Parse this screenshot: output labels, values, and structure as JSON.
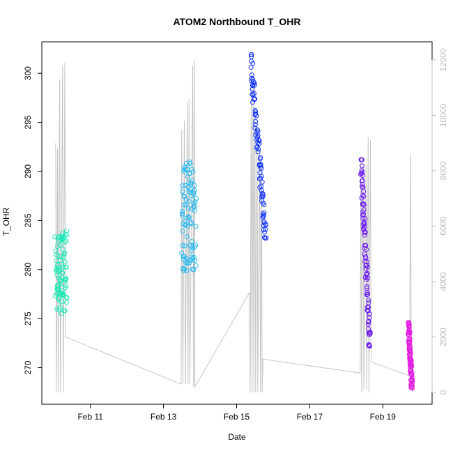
{
  "chart_data": {
    "type": "scatter",
    "title": "ATOM2 Northbound T_OHR",
    "xlabel": "Date",
    "ylabel": "T_OHR",
    "x_ticks": [
      {
        "day": 11,
        "label": "Feb 11"
      },
      {
        "day": 13,
        "label": "Feb 13"
      },
      {
        "day": 15,
        "label": "Feb 15"
      },
      {
        "day": 17,
        "label": "Feb 17"
      },
      {
        "day": 19,
        "label": "Feb 19"
      }
    ],
    "xlim": [
      9.9,
      20.1
    ],
    "ylim": [
      267.2,
      302.5
    ],
    "y_ticks": [
      270,
      275,
      280,
      285,
      290,
      295,
      300
    ],
    "y2lim": [
      -100,
      12400
    ],
    "y2_ticks": [
      0,
      2000,
      4000,
      6000,
      8000,
      10000,
      12000
    ],
    "y2_color": "#bdbdbd",
    "grid": false,
    "legend": "none",
    "scatter_series": [
      {
        "color": "#1de9b6",
        "x_range": [
          10.05,
          10.35
        ],
        "y_range": [
          275.5,
          284.0
        ]
      },
      {
        "color": "#1fb8f0",
        "x_range": [
          13.5,
          13.88
        ],
        "y_range": [
          279.8,
          291.1
        ]
      },
      {
        "color": "#1535f5",
        "x_range": [
          15.38,
          15.8
        ],
        "y_range": [
          283.2,
          301.9
        ]
      },
      {
        "color": "#6a17f2",
        "x_range": [
          18.4,
          18.65
        ],
        "y_range": [
          272.2,
          291.2
        ]
      },
      {
        "color": "#e21de0",
        "x_range": [
          19.7,
          19.8
        ],
        "y_range": [
          267.9,
          274.6
        ]
      }
    ],
    "line_series": {
      "color": "#c4c4c4",
      "axis": "right",
      "points": [
        [
          10.05,
          9000
        ],
        [
          10.07,
          0
        ],
        [
          10.1,
          8800
        ],
        [
          10.12,
          0
        ],
        [
          10.16,
          11300
        ],
        [
          10.18,
          0
        ],
        [
          10.24,
          11800
        ],
        [
          10.26,
          0
        ],
        [
          10.3,
          11900
        ],
        [
          10.32,
          2000
        ],
        [
          13.48,
          300
        ],
        [
          13.5,
          9500
        ],
        [
          13.53,
          300
        ],
        [
          13.57,
          9800
        ],
        [
          13.6,
          300
        ],
        [
          13.65,
          10500
        ],
        [
          13.67,
          300
        ],
        [
          13.7,
          10600
        ],
        [
          13.72,
          300
        ],
        [
          13.8,
          11800
        ],
        [
          13.82,
          200
        ],
        [
          13.84,
          12000
        ],
        [
          13.86,
          200
        ],
        [
          15.35,
          3600
        ],
        [
          15.37,
          0
        ],
        [
          15.4,
          11600
        ],
        [
          15.42,
          0
        ],
        [
          15.45,
          11000
        ],
        [
          15.47,
          0
        ],
        [
          15.5,
          10300
        ],
        [
          15.52,
          0
        ],
        [
          15.56,
          9500
        ],
        [
          15.58,
          0
        ],
        [
          15.63,
          8800
        ],
        [
          15.65,
          0
        ],
        [
          15.68,
          8200
        ],
        [
          15.7,
          0
        ],
        [
          15.72,
          1200
        ],
        [
          18.38,
          700
        ],
        [
          18.4,
          8500
        ],
        [
          18.42,
          0
        ],
        [
          18.46,
          8300
        ],
        [
          18.48,
          100
        ],
        [
          18.54,
          8200
        ],
        [
          18.56,
          100
        ],
        [
          18.6,
          9200
        ],
        [
          18.62,
          0
        ],
        [
          18.66,
          9100
        ],
        [
          18.68,
          1100
        ],
        [
          19.73,
          600
        ],
        [
          19.76,
          8600
        ],
        [
          19.78,
          300
        ]
      ]
    }
  }
}
